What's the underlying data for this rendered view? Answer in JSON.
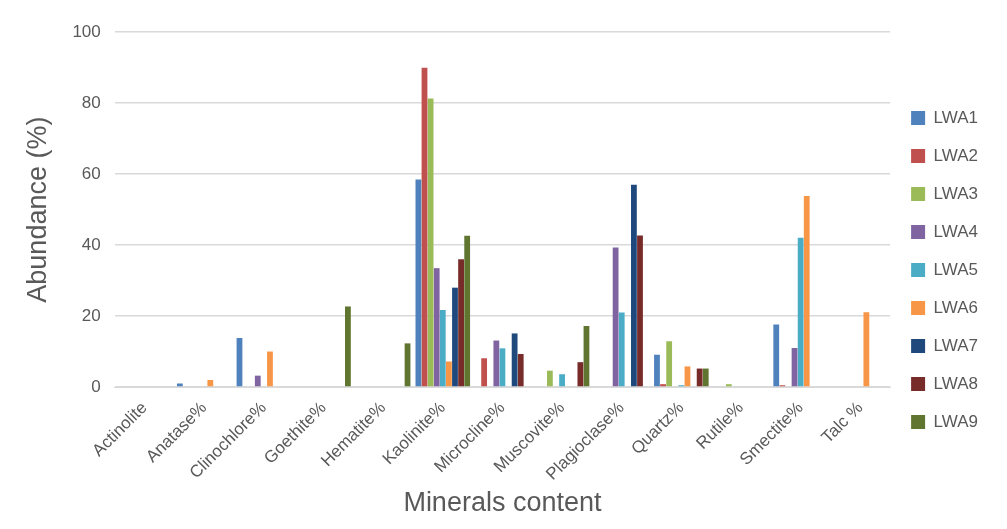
{
  "chart_data": {
    "type": "bar",
    "xlabel": "Minerals content",
    "ylabel": "Abundance (%)",
    "categories": [
      "Actinolite",
      "Anatase%",
      "Clinochlore%",
      "Goethite%",
      "Hematite%",
      "Kaolinite%",
      "Microcline%",
      "Muscovite%",
      "Plagioclase%",
      "Quartz%",
      "Rutile%",
      "Smectite%",
      "Talc %"
    ],
    "series": [
      {
        "name": "LWA1",
        "color": "#4f81bd",
        "values": [
          0,
          1,
          13.8,
          0,
          0,
          58.5,
          0,
          0,
          0,
          9.1,
          0,
          17.6,
          0
        ]
      },
      {
        "name": "LWA2",
        "color": "#c0504d",
        "values": [
          0,
          0,
          0,
          0,
          0,
          90,
          8.1,
          0,
          0,
          0.8,
          null,
          0.5,
          0
        ]
      },
      {
        "name": "LWA3",
        "color": "#9bbb59",
        "values": [
          0,
          0,
          0,
          0,
          0,
          81.3,
          0,
          4.6,
          0,
          12.9,
          0.8,
          null,
          0
        ]
      },
      {
        "name": "LWA4",
        "color": "#8064a2",
        "values": [
          0,
          0,
          3.2,
          0,
          0,
          33.5,
          13.1,
          0,
          39.3,
          0,
          0,
          11,
          0
        ]
      },
      {
        "name": "LWA5",
        "color": "#4bacc6",
        "values": [
          0,
          0,
          0,
          0,
          0,
          21.7,
          10.9,
          3.6,
          21,
          0.5,
          0,
          42.1,
          0
        ]
      },
      {
        "name": "LWA6",
        "color": "#f79646",
        "values": [
          0,
          2,
          10,
          0,
          0,
          7.2,
          0,
          0,
          0,
          5.8,
          0,
          53.8,
          21.1
        ]
      },
      {
        "name": "LWA7",
        "color": "#1f497d",
        "values": [
          0,
          0,
          0,
          0,
          0,
          28,
          15.1,
          0,
          57,
          0,
          0,
          0,
          0
        ]
      },
      {
        "name": "LWA8",
        "color": "#772c2a",
        "values": [
          0,
          0,
          0,
          0,
          0,
          36,
          9.3,
          7,
          42.7,
          5.2,
          0,
          0,
          0
        ]
      },
      {
        "name": "LWA9",
        "color": "#5f7530",
        "values": [
          0,
          0,
          0,
          22.7,
          12.3,
          42.6,
          0,
          17.2,
          0,
          5.2,
          0,
          0,
          0
        ]
      }
    ],
    "ylim": [
      0,
      100
    ],
    "yticks": [
      0,
      20,
      40,
      60,
      80,
      100
    ],
    "grid": "y",
    "legend": "right"
  }
}
